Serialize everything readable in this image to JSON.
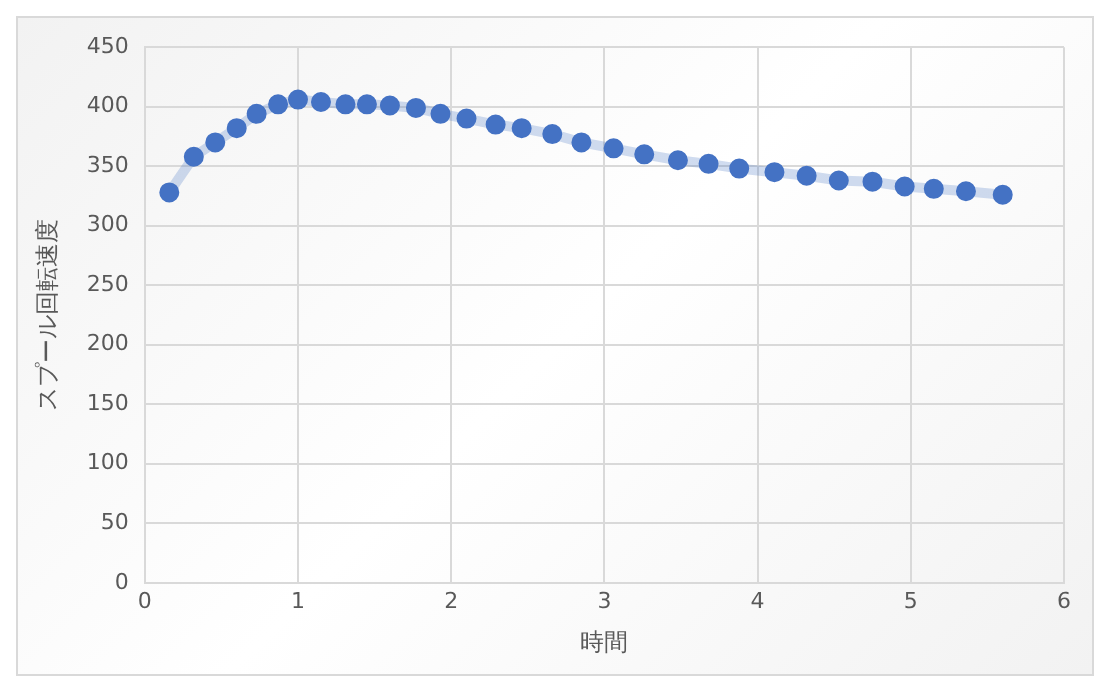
{
  "chart_data": {
    "type": "line",
    "xlabel": "時間",
    "ylabel": "スプール回転速度",
    "x": [
      0.16,
      0.32,
      0.46,
      0.6,
      0.73,
      0.87,
      1.0,
      1.15,
      1.31,
      1.45,
      1.6,
      1.77,
      1.93,
      2.1,
      2.29,
      2.46,
      2.66,
      2.85,
      3.06,
      3.26,
      3.48,
      3.68,
      3.88,
      4.11,
      4.32,
      4.53,
      4.75,
      4.96,
      5.15,
      5.36,
      5.6
    ],
    "series": [
      {
        "color": "#4472c4",
        "values": [
          328,
          358,
          370,
          382,
          394,
          402,
          406,
          404,
          402,
          402,
          401,
          399,
          394,
          390,
          385,
          382,
          377,
          370,
          365,
          360,
          355,
          352,
          348,
          345,
          342,
          338,
          337,
          333,
          331,
          329,
          326
        ]
      }
    ],
    "xlim": [
      0,
      6
    ],
    "xticks": [
      0,
      1,
      2,
      3,
      4,
      5,
      6
    ],
    "ylim": [
      0,
      450
    ],
    "yticks": [
      0,
      50,
      100,
      150,
      200,
      250,
      300,
      350,
      400,
      450
    ],
    "grid": true,
    "legend": false,
    "marker": "circle",
    "line_style": "solid"
  }
}
